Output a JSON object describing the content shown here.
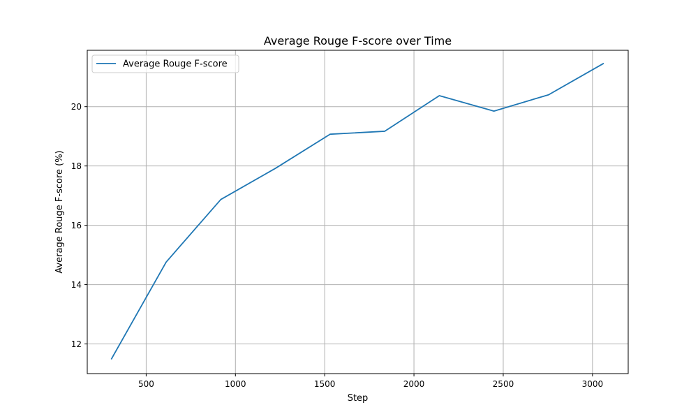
{
  "chart_data": {
    "type": "line",
    "title": "Average Rouge F-score over Time",
    "xlabel": "Step",
    "ylabel": "Average Rouge F-score (%)",
    "xlim": [
      170,
      3200
    ],
    "ylim": [
      11.0,
      21.9
    ],
    "xticks": [
      500,
      1000,
      1500,
      2000,
      2500,
      3000
    ],
    "yticks": [
      12,
      14,
      16,
      18,
      20
    ],
    "grid": true,
    "legend_position": "top-left",
    "series": [
      {
        "name": "Average Rouge F-score",
        "color": "#1f77b4",
        "x": [
          306,
          612,
          918,
          1224,
          1530,
          1836,
          2142,
          2448,
          2754,
          3060
        ],
        "y": [
          11.5,
          14.76,
          16.87,
          17.92,
          19.07,
          19.17,
          20.37,
          19.85,
          20.4,
          21.45
        ]
      }
    ]
  }
}
